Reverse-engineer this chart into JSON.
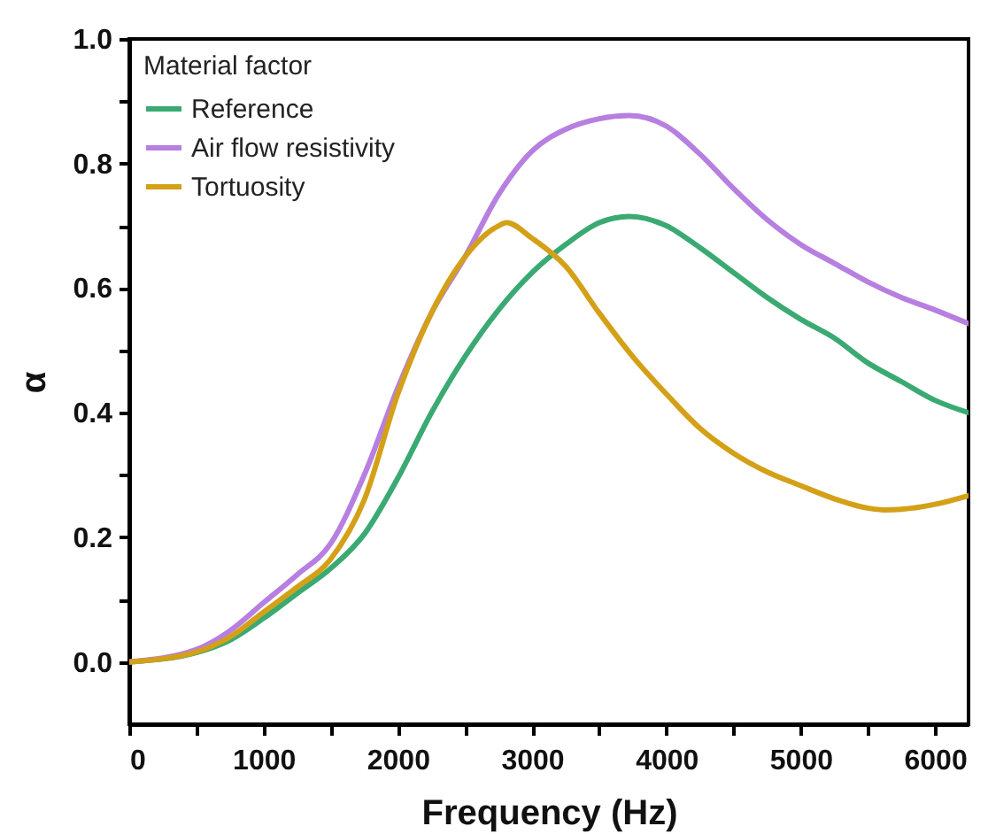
{
  "chart_data": {
    "type": "line",
    "xlabel": "Frequency (Hz)",
    "ylabel": "α",
    "legend_title": "Material factor",
    "legend": "top left",
    "grid": false,
    "marker": "none",
    "line_style": "solid",
    "xlim": [
      0,
      6250
    ],
    "ylim": [
      -0.1,
      1.0
    ],
    "xticks": [
      0,
      {
        "value": 500,
        "label": null
      },
      1000,
      {
        "value": 1500,
        "label": null
      },
      2000,
      {
        "value": 2500,
        "label": null
      },
      3000,
      {
        "value": 3500,
        "label": null
      },
      4000,
      {
        "value": 4500,
        "label": null
      },
      5000,
      {
        "value": 5500,
        "label": null
      },
      6000
    ],
    "yticks": [
      {
        "value": 0,
        "label": "0.0"
      },
      {
        "value": 0.1,
        "label": null
      },
      {
        "value": 0.2,
        "label": "0.2"
      },
      {
        "value": 0.3,
        "label": null
      },
      {
        "value": 0.4,
        "label": "0.4"
      },
      {
        "value": 0.5,
        "label": null
      },
      {
        "value": 0.6,
        "label": "0.6"
      },
      {
        "value": 0.7,
        "label": null
      },
      {
        "value": 0.8,
        "label": "0.8"
      },
      {
        "value": 0.9,
        "label": null
      },
      {
        "value": 1.0,
        "label": "1.0"
      }
    ],
    "series": [
      {
        "name": "Reference",
        "color": "#3aaa72",
        "x": [
          0,
          500,
          750,
          1000,
          1250,
          1500,
          1750,
          2000,
          2250,
          2500,
          2750,
          3000,
          3250,
          3500,
          3725,
          4000,
          4250,
          4500,
          4750,
          5000,
          5250,
          5500,
          5750,
          6000,
          6250
        ],
        "values": [
          0,
          0.015,
          0.035,
          0.07,
          0.11,
          0.15,
          0.205,
          0.295,
          0.4,
          0.49,
          0.565,
          0.625,
          0.67,
          0.705,
          0.715,
          0.7,
          0.665,
          0.625,
          0.585,
          0.55,
          0.52,
          0.48,
          0.45,
          0.42,
          0.4
        ]
      },
      {
        "name": "Air flow resistivity",
        "color": "#b77fe0",
        "x": [
          0,
          500,
          750,
          1000,
          1250,
          1500,
          1750,
          2000,
          2250,
          2500,
          2750,
          3000,
          3250,
          3500,
          3725,
          4000,
          4250,
          4500,
          4750,
          5000,
          5250,
          5500,
          5750,
          6000,
          6250
        ],
        "values": [
          0,
          0.02,
          0.05,
          0.095,
          0.14,
          0.19,
          0.3,
          0.44,
          0.56,
          0.65,
          0.75,
          0.82,
          0.855,
          0.872,
          0.877,
          0.86,
          0.815,
          0.76,
          0.71,
          0.67,
          0.64,
          0.61,
          0.585,
          0.565,
          0.543
        ]
      },
      {
        "name": "Tortuosity",
        "color": "#d4a017",
        "x": [
          0,
          500,
          750,
          1000,
          1250,
          1500,
          1750,
          2000,
          2250,
          2500,
          2750,
          2810,
          3000,
          3250,
          3500,
          3750,
          4000,
          4250,
          4500,
          4750,
          5000,
          5250,
          5500,
          5625,
          5750,
          6000,
          6250
        ],
        "values": [
          0,
          0.016,
          0.04,
          0.08,
          0.12,
          0.165,
          0.26,
          0.43,
          0.56,
          0.65,
          0.7,
          0.705,
          0.68,
          0.635,
          0.56,
          0.49,
          0.43,
          0.375,
          0.335,
          0.305,
          0.283,
          0.262,
          0.247,
          0.244,
          0.245,
          0.253,
          0.267
        ]
      }
    ]
  }
}
